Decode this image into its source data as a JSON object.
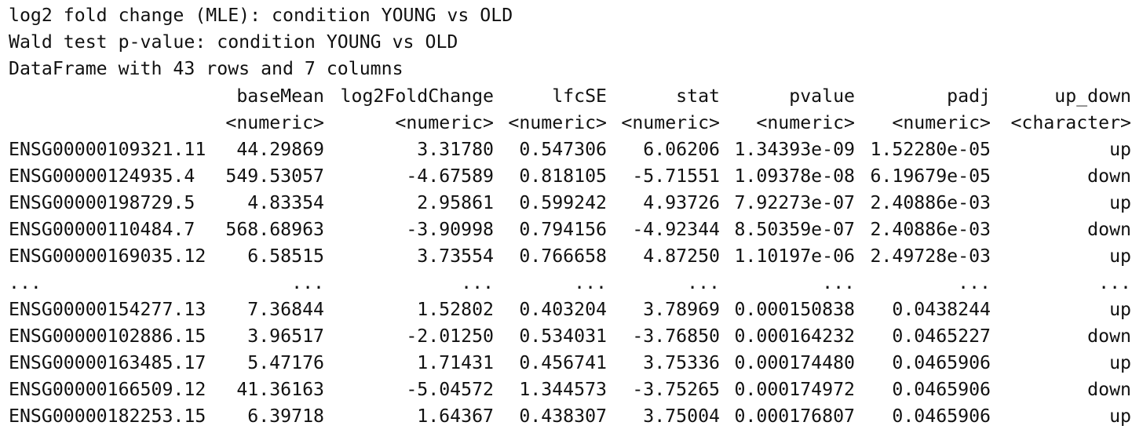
{
  "header_lines": [
    "log2 fold change (MLE): condition YOUNG vs OLD",
    "Wald test p-value: condition YOUNG vs OLD",
    "DataFrame with 43 rows and 7 columns"
  ],
  "columns": [
    "baseMean",
    "log2FoldChange",
    "lfcSE",
    "stat",
    "pvalue",
    "padj",
    "up_down"
  ],
  "column_types": [
    "<numeric>",
    "<numeric>",
    "<numeric>",
    "<numeric>",
    "<numeric>",
    "<numeric>",
    "<character>"
  ],
  "rows": [
    [
      "ENSG00000109321.11",
      "44.29869",
      "3.31780",
      "0.547306",
      "6.06206",
      "1.34393e-09",
      "1.52280e-05",
      "up"
    ],
    [
      "ENSG00000124935.4",
      "549.53057",
      "-4.67589",
      "0.818105",
      "-5.71551",
      "1.09378e-08",
      "6.19679e-05",
      "down"
    ],
    [
      "ENSG00000198729.5",
      "4.83354",
      "2.95861",
      "0.599242",
      "4.93726",
      "7.92273e-07",
      "2.40886e-03",
      "up"
    ],
    [
      "ENSG00000110484.7",
      "568.68963",
      "-3.90998",
      "0.794156",
      "-4.92344",
      "8.50359e-07",
      "2.40886e-03",
      "down"
    ],
    [
      "ENSG00000169035.12",
      "6.58515",
      "3.73554",
      "0.766658",
      "4.87250",
      "1.10197e-06",
      "2.49728e-03",
      "up"
    ],
    [
      "...",
      "...",
      "...",
      "...",
      "...",
      "...",
      "...",
      "..."
    ],
    [
      "ENSG00000154277.13",
      "7.36844",
      "1.52802",
      "0.403204",
      "3.78969",
      "0.000150838",
      "0.0438244",
      "up"
    ],
    [
      "ENSG00000102886.15",
      "3.96517",
      "-2.01250",
      "0.534031",
      "-3.76850",
      "0.000164232",
      "0.0465227",
      "down"
    ],
    [
      "ENSG00000163485.17",
      "5.47176",
      "1.71431",
      "0.456741",
      "3.75336",
      "0.000174480",
      "0.0465906",
      "up"
    ],
    [
      "ENSG00000166509.12",
      "41.36163",
      "-5.04572",
      "1.344573",
      "-3.75265",
      "0.000174972",
      "0.0465906",
      "down"
    ],
    [
      "ENSG00000182253.15",
      "6.39718",
      "1.64367",
      "0.438307",
      "3.75004",
      "0.000176807",
      "0.0465906",
      "up"
    ]
  ]
}
